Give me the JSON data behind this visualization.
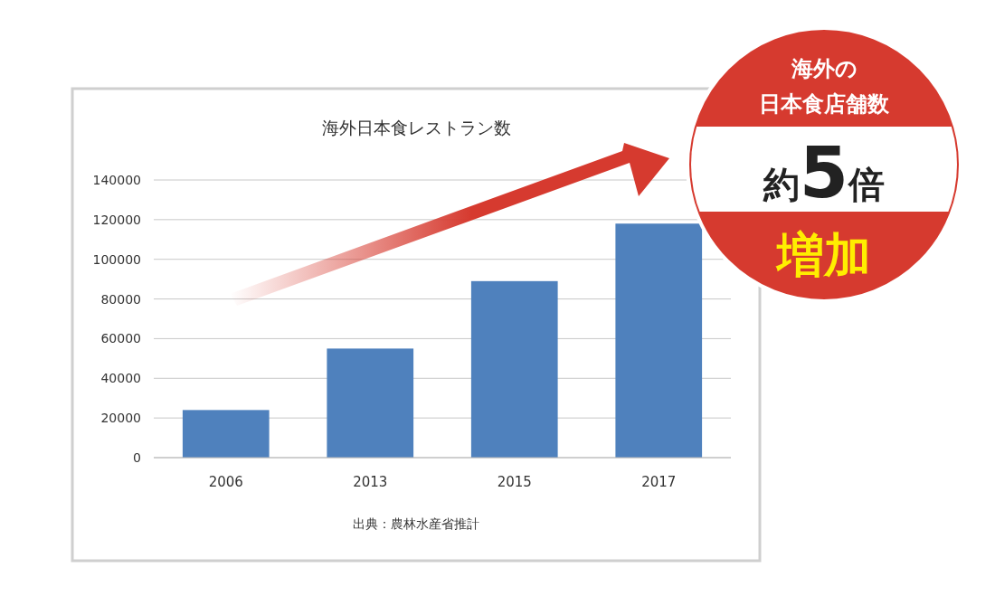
{
  "chart_data": {
    "type": "bar",
    "title": "海外日本食レストラン数",
    "categories": [
      "2006",
      "2013",
      "2015",
      "2017"
    ],
    "values": [
      24000,
      55000,
      89000,
      118000
    ],
    "color": "#4f81bd",
    "ylim": [
      0,
      140000
    ],
    "yticks": [
      0,
      20000,
      40000,
      60000,
      80000,
      100000,
      120000,
      140000
    ],
    "grid": "y",
    "annotations": [
      "出典：農林水産省推計",
      "海外の",
      "日本食店舗数",
      "約5倍",
      "増加"
    ]
  }
}
